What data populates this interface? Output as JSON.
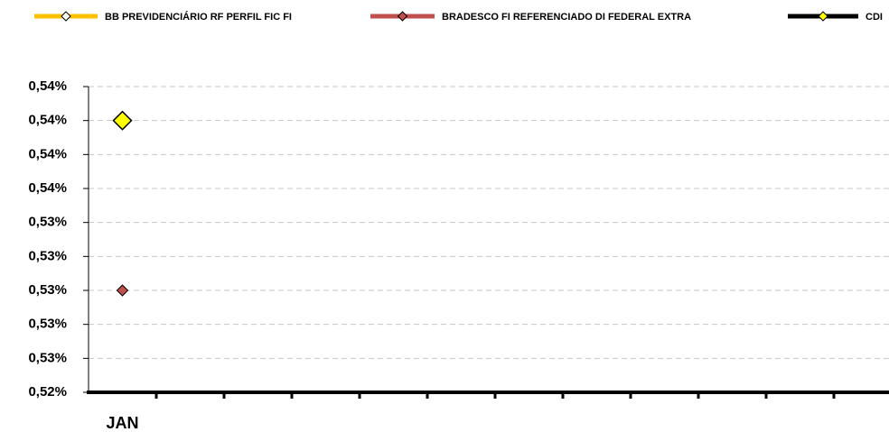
{
  "chart_data": {
    "type": "line",
    "categories": [
      "JAN",
      null,
      null,
      null,
      null,
      null,
      null,
      null,
      null,
      null,
      null,
      null
    ],
    "series": [
      {
        "name": "BB PREVIDENCIÁRIO RF PERFIL FIC FI",
        "color": "#ffc000",
        "values": [
          null,
          null,
          null,
          null,
          null,
          null,
          null,
          null,
          null,
          null,
          null,
          null
        ]
      },
      {
        "name": "BRADESCO FI REFERENCIADO DI FEDERAL EXTRA",
        "color": "#c0504d",
        "values": [
          0.53,
          null,
          null,
          null,
          null,
          null,
          null,
          null,
          null,
          null,
          null,
          null
        ]
      },
      {
        "name": "CDI",
        "color": "#000000",
        "marker_color": "#ffff00",
        "values": [
          0.54,
          null,
          null,
          null,
          null,
          null,
          null,
          null,
          null,
          null,
          null,
          null
        ]
      }
    ],
    "ylim": [
      0.524,
      0.542
    ],
    "yticks": [
      {
        "value": 0.524,
        "label": "0,52%"
      },
      {
        "value": 0.526,
        "label": "0,53%"
      },
      {
        "value": 0.528,
        "label": "0,53%"
      },
      {
        "value": 0.53,
        "label": "0,53%"
      },
      {
        "value": 0.532,
        "label": "0,53%"
      },
      {
        "value": 0.534,
        "label": "0,53%"
      },
      {
        "value": 0.536,
        "label": "0,54%"
      },
      {
        "value": 0.538,
        "label": "0,54%"
      },
      {
        "value": 0.54,
        "label": "0,54%"
      },
      {
        "value": 0.542,
        "label": "0,54%"
      }
    ],
    "grid": true,
    "legend": "top"
  }
}
